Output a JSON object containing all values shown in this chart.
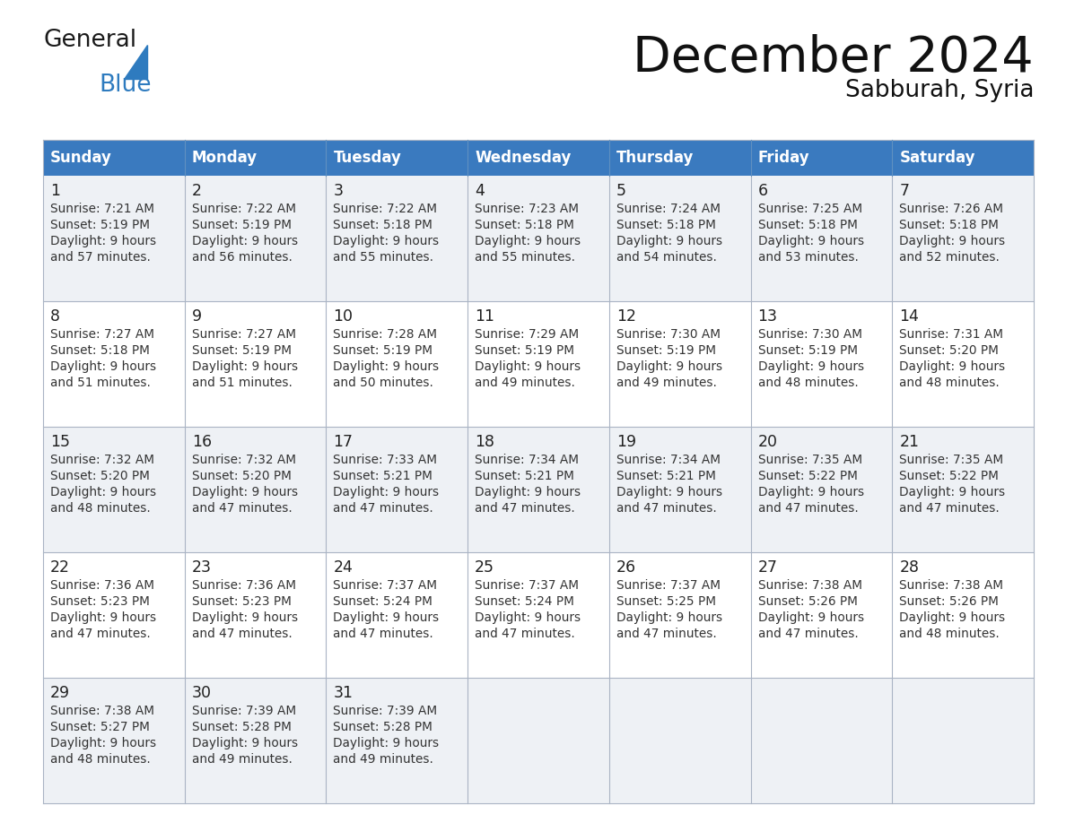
{
  "title": "December 2024",
  "subtitle": "Sabburah, Syria",
  "header_bg": "#3a7abf",
  "header_text_color": "#ffffff",
  "row_bg": [
    "#eef1f5",
    "#ffffff",
    "#eef1f5",
    "#ffffff",
    "#eef1f5"
  ],
  "days_of_week": [
    "Sunday",
    "Monday",
    "Tuesday",
    "Wednesday",
    "Thursday",
    "Friday",
    "Saturday"
  ],
  "calendar": [
    [
      {
        "day": 1,
        "sunrise": "7:21 AM",
        "sunset": "5:19 PM",
        "daylight_hours": 9,
        "daylight_min": "57 minutes."
      },
      {
        "day": 2,
        "sunrise": "7:22 AM",
        "sunset": "5:19 PM",
        "daylight_hours": 9,
        "daylight_min": "56 minutes."
      },
      {
        "day": 3,
        "sunrise": "7:22 AM",
        "sunset": "5:18 PM",
        "daylight_hours": 9,
        "daylight_min": "55 minutes."
      },
      {
        "day": 4,
        "sunrise": "7:23 AM",
        "sunset": "5:18 PM",
        "daylight_hours": 9,
        "daylight_min": "55 minutes."
      },
      {
        "day": 5,
        "sunrise": "7:24 AM",
        "sunset": "5:18 PM",
        "daylight_hours": 9,
        "daylight_min": "54 minutes."
      },
      {
        "day": 6,
        "sunrise": "7:25 AM",
        "sunset": "5:18 PM",
        "daylight_hours": 9,
        "daylight_min": "53 minutes."
      },
      {
        "day": 7,
        "sunrise": "7:26 AM",
        "sunset": "5:18 PM",
        "daylight_hours": 9,
        "daylight_min": "52 minutes."
      }
    ],
    [
      {
        "day": 8,
        "sunrise": "7:27 AM",
        "sunset": "5:18 PM",
        "daylight_hours": 9,
        "daylight_min": "51 minutes."
      },
      {
        "day": 9,
        "sunrise": "7:27 AM",
        "sunset": "5:19 PM",
        "daylight_hours": 9,
        "daylight_min": "51 minutes."
      },
      {
        "day": 10,
        "sunrise": "7:28 AM",
        "sunset": "5:19 PM",
        "daylight_hours": 9,
        "daylight_min": "50 minutes."
      },
      {
        "day": 11,
        "sunrise": "7:29 AM",
        "sunset": "5:19 PM",
        "daylight_hours": 9,
        "daylight_min": "49 minutes."
      },
      {
        "day": 12,
        "sunrise": "7:30 AM",
        "sunset": "5:19 PM",
        "daylight_hours": 9,
        "daylight_min": "49 minutes."
      },
      {
        "day": 13,
        "sunrise": "7:30 AM",
        "sunset": "5:19 PM",
        "daylight_hours": 9,
        "daylight_min": "48 minutes."
      },
      {
        "day": 14,
        "sunrise": "7:31 AM",
        "sunset": "5:20 PM",
        "daylight_hours": 9,
        "daylight_min": "48 minutes."
      }
    ],
    [
      {
        "day": 15,
        "sunrise": "7:32 AM",
        "sunset": "5:20 PM",
        "daylight_hours": 9,
        "daylight_min": "48 minutes."
      },
      {
        "day": 16,
        "sunrise": "7:32 AM",
        "sunset": "5:20 PM",
        "daylight_hours": 9,
        "daylight_min": "47 minutes."
      },
      {
        "day": 17,
        "sunrise": "7:33 AM",
        "sunset": "5:21 PM",
        "daylight_hours": 9,
        "daylight_min": "47 minutes."
      },
      {
        "day": 18,
        "sunrise": "7:34 AM",
        "sunset": "5:21 PM",
        "daylight_hours": 9,
        "daylight_min": "47 minutes."
      },
      {
        "day": 19,
        "sunrise": "7:34 AM",
        "sunset": "5:21 PM",
        "daylight_hours": 9,
        "daylight_min": "47 minutes."
      },
      {
        "day": 20,
        "sunrise": "7:35 AM",
        "sunset": "5:22 PM",
        "daylight_hours": 9,
        "daylight_min": "47 minutes."
      },
      {
        "day": 21,
        "sunrise": "7:35 AM",
        "sunset": "5:22 PM",
        "daylight_hours": 9,
        "daylight_min": "47 minutes."
      }
    ],
    [
      {
        "day": 22,
        "sunrise": "7:36 AM",
        "sunset": "5:23 PM",
        "daylight_hours": 9,
        "daylight_min": "47 minutes."
      },
      {
        "day": 23,
        "sunrise": "7:36 AM",
        "sunset": "5:23 PM",
        "daylight_hours": 9,
        "daylight_min": "47 minutes."
      },
      {
        "day": 24,
        "sunrise": "7:37 AM",
        "sunset": "5:24 PM",
        "daylight_hours": 9,
        "daylight_min": "47 minutes."
      },
      {
        "day": 25,
        "sunrise": "7:37 AM",
        "sunset": "5:24 PM",
        "daylight_hours": 9,
        "daylight_min": "47 minutes."
      },
      {
        "day": 26,
        "sunrise": "7:37 AM",
        "sunset": "5:25 PM",
        "daylight_hours": 9,
        "daylight_min": "47 minutes."
      },
      {
        "day": 27,
        "sunrise": "7:38 AM",
        "sunset": "5:26 PM",
        "daylight_hours": 9,
        "daylight_min": "47 minutes."
      },
      {
        "day": 28,
        "sunrise": "7:38 AM",
        "sunset": "5:26 PM",
        "daylight_hours": 9,
        "daylight_min": "48 minutes."
      }
    ],
    [
      {
        "day": 29,
        "sunrise": "7:38 AM",
        "sunset": "5:27 PM",
        "daylight_hours": 9,
        "daylight_min": "48 minutes."
      },
      {
        "day": 30,
        "sunrise": "7:39 AM",
        "sunset": "5:28 PM",
        "daylight_hours": 9,
        "daylight_min": "49 minutes."
      },
      {
        "day": 31,
        "sunrise": "7:39 AM",
        "sunset": "5:28 PM",
        "daylight_hours": 9,
        "daylight_min": "49 minutes."
      },
      null,
      null,
      null,
      null
    ]
  ],
  "logo_color_general": "#1a1a1a",
  "logo_color_blue": "#2e7bbf",
  "logo_triangle_color": "#2e7bbf",
  "border_color": "#aab4c4",
  "title_color": "#111111",
  "subtitle_color": "#111111"
}
